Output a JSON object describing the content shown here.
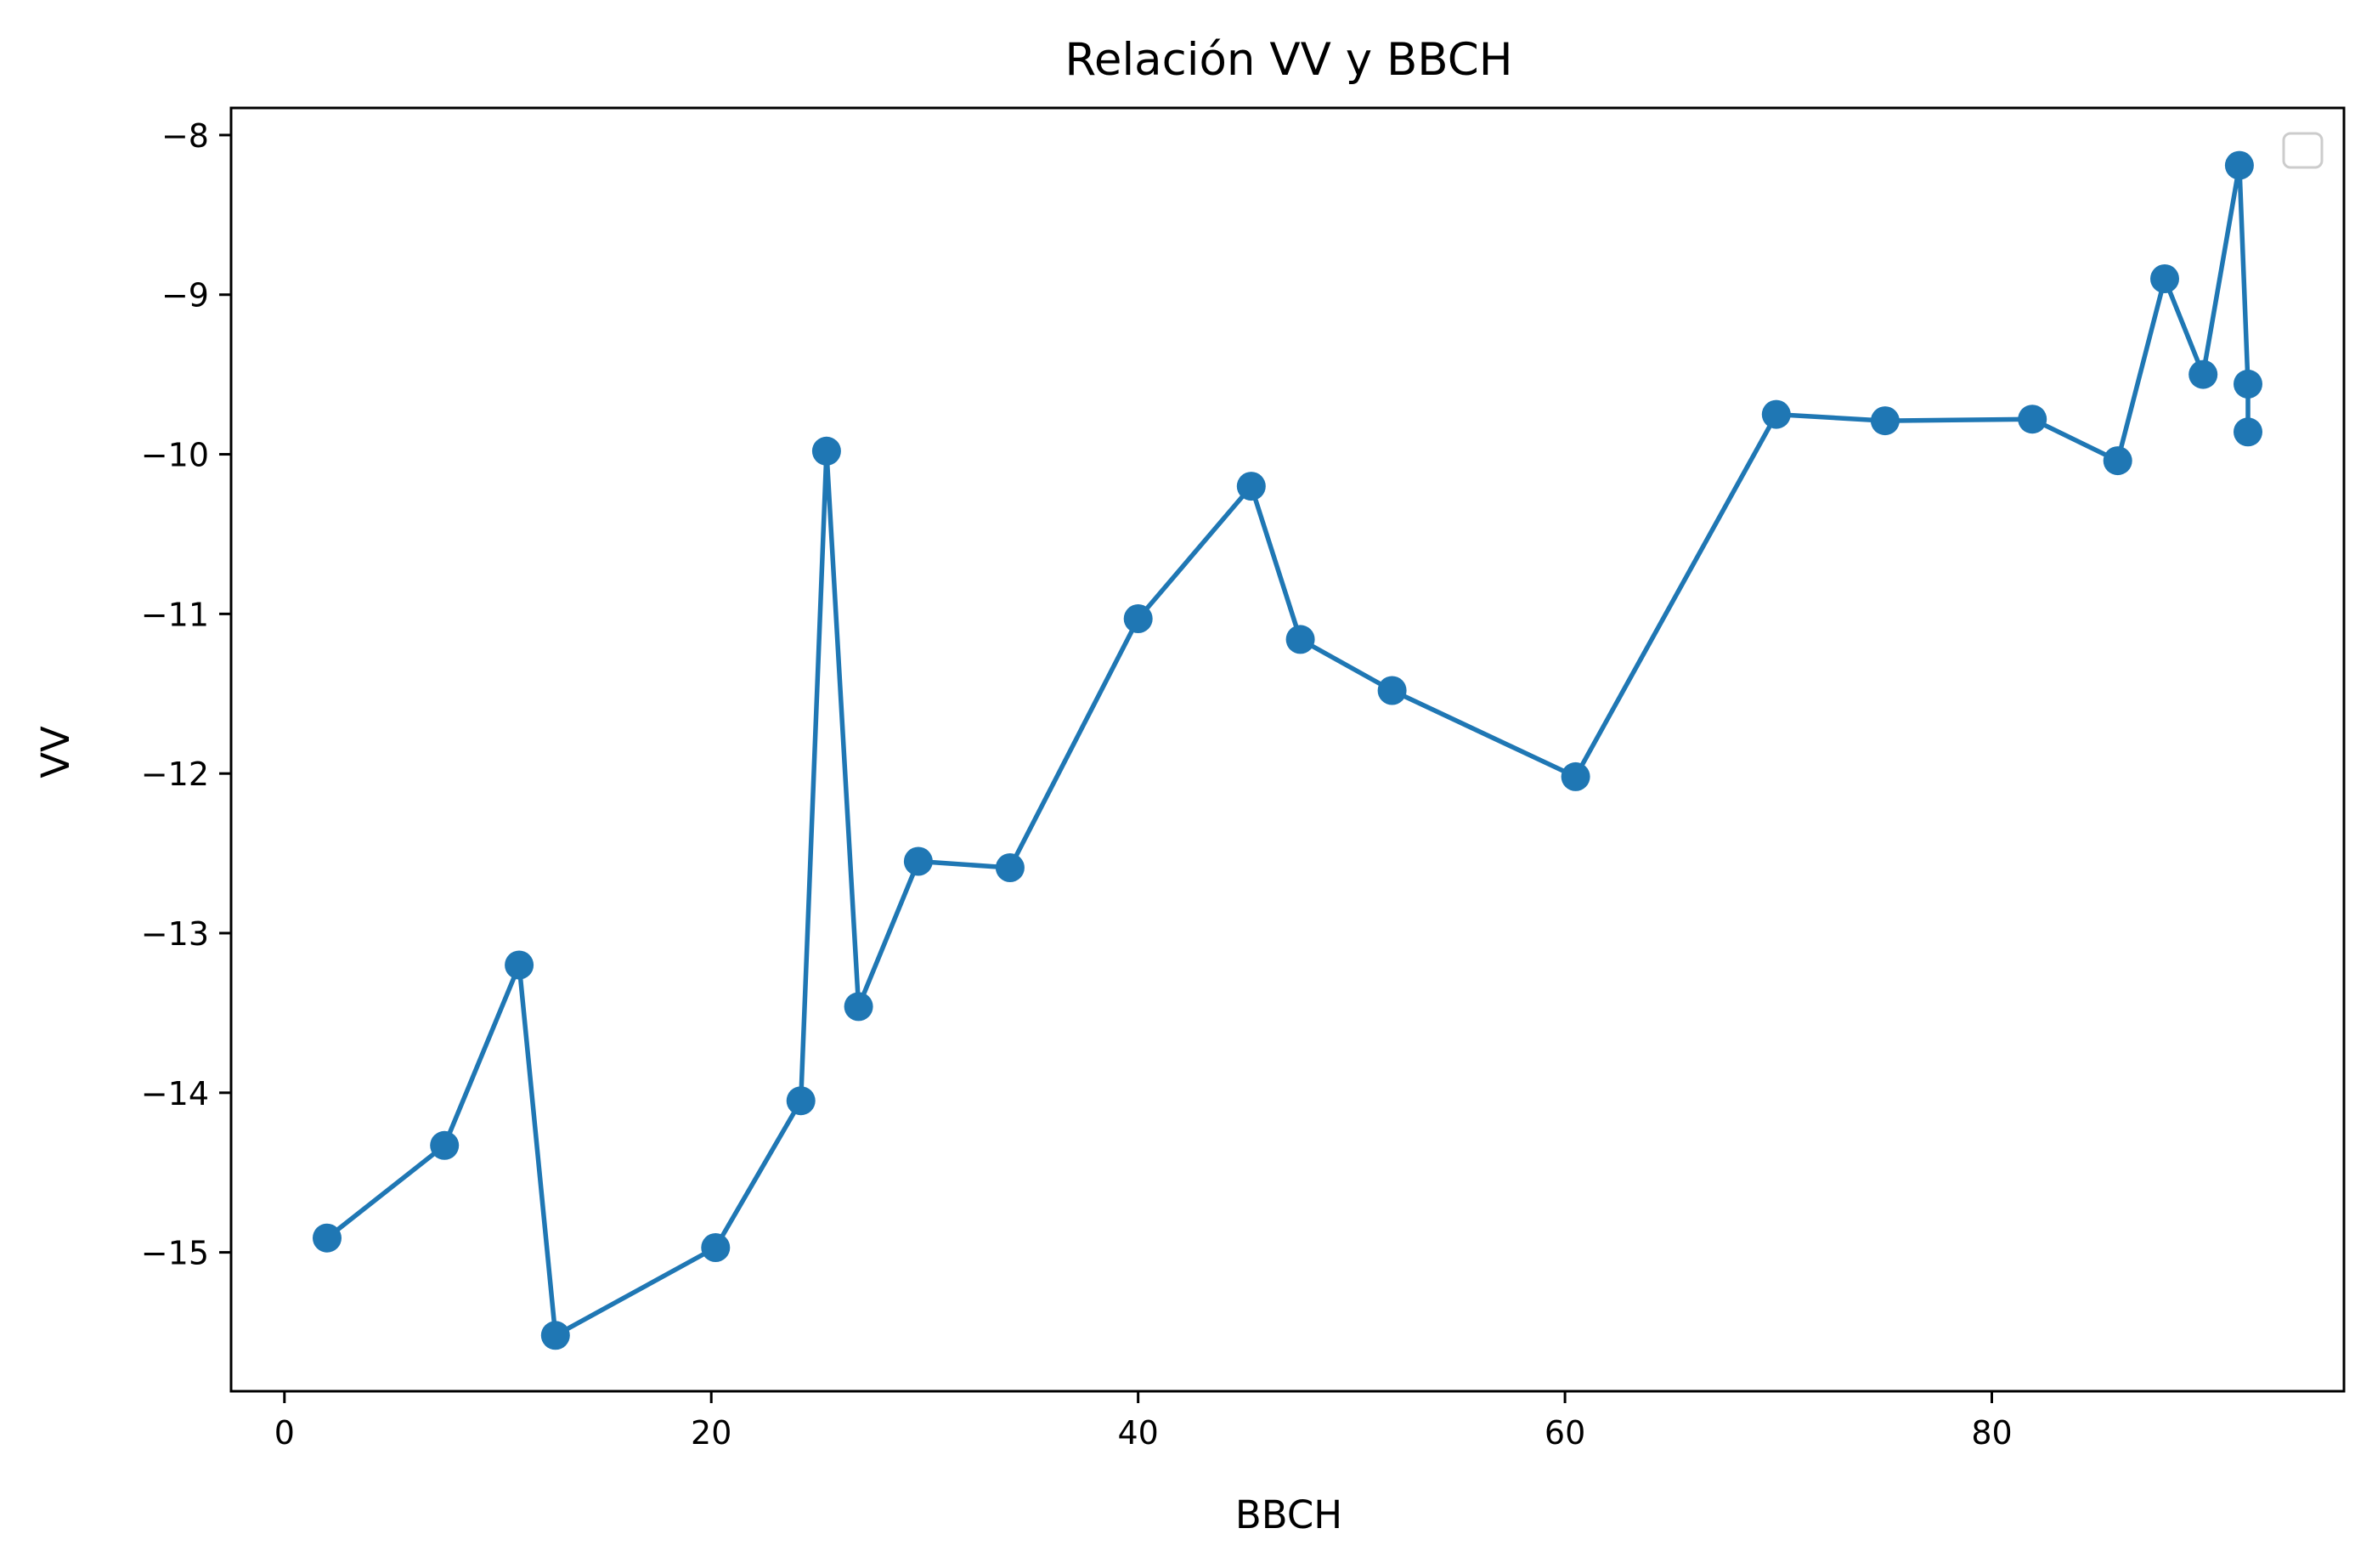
{
  "chart_data": {
    "type": "line",
    "title": "Relación VV y BBCH",
    "xlabel": "BBCH",
    "ylabel": "VV",
    "xlim": [
      -2.5,
      96.5
    ],
    "ylim": [
      -15.87,
      -7.83
    ],
    "xticks": [
      0,
      20,
      40,
      60,
      80
    ],
    "xtick_labels": [
      "0",
      "20",
      "40",
      "60",
      "80"
    ],
    "yticks": [
      -8,
      -9,
      -10,
      -11,
      -12,
      -13,
      -14,
      -15
    ],
    "ytick_labels": [
      "−8",
      "−9",
      "−10",
      "−11",
      "−12",
      "−13",
      "−14",
      "−15"
    ],
    "grid": false,
    "legend": {
      "placement": "top-right",
      "entries": []
    },
    "color": "#1f77b4",
    "marker": "circle",
    "series": [
      {
        "x": [
          2,
          7.5,
          11,
          12.7,
          20.2,
          24.2,
          25.4,
          26.9,
          29.7,
          34,
          40,
          45.3,
          47.6,
          51.9,
          60.5,
          69.9,
          75,
          81.9,
          85.9,
          88.1,
          89.9,
          91.6,
          92,
          92
        ],
        "y": [
          -14.91,
          -14.33,
          -13.2,
          -15.52,
          -14.97,
          -14.05,
          -9.98,
          -13.46,
          -12.55,
          -12.59,
          -11.03,
          -10.2,
          -11.16,
          -11.48,
          -12.02,
          -9.75,
          -9.79,
          -9.78,
          -10.04,
          -8.9,
          -9.5,
          -8.19,
          -9.56,
          -9.86
        ]
      }
    ]
  }
}
